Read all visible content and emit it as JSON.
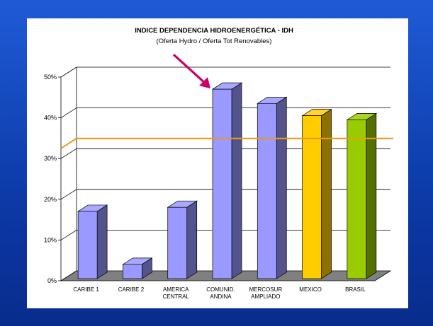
{
  "slide": {
    "background_color": "#1a4fc8"
  },
  "chart_data": {
    "type": "bar",
    "title": "INDICE DEPENDENCIA HIDROENERGÉTICA - IDH",
    "subtitle": "(Oferta Hydro / Oferta Tot Renovables)",
    "categories": [
      "CARIBE 1",
      "CARIBE 2",
      "AMERICA CENTRAL",
      "COMUNID. ANDINA",
      "MERCOSUR AMPLIADO",
      "MEXICO",
      "BRASIL"
    ],
    "category_lines": [
      [
        "CARIBE 1"
      ],
      [
        "CARIBE 2"
      ],
      [
        "AMERICA",
        "CENTRAL"
      ],
      [
        "COMUNID.",
        "ANDINA"
      ],
      [
        "MERCOSUR",
        "AMPLIADO"
      ],
      [
        "MEXICO"
      ],
      [
        "BRASIL"
      ]
    ],
    "values": [
      16.5,
      3.5,
      17.5,
      46.5,
      43,
      40,
      39
    ],
    "unit": "%",
    "ylim": [
      0,
      50
    ],
    "yticks": [
      0,
      10,
      20,
      30,
      40,
      50
    ],
    "ytick_labels": [
      "0%",
      "10%",
      "20%",
      "30%",
      "40%",
      "50%"
    ],
    "reference_line": 32.5,
    "reference_line_color": "#e89a1a",
    "bar_colors": [
      "#9999ff",
      "#9999ff",
      "#9999ff",
      "#9999ff",
      "#9999ff",
      "#ffcc00",
      "#99cc00"
    ],
    "highlight": "arrow pointing to COMUNID. ANDINA",
    "arrow_color": "#cc0066",
    "grid": true,
    "three_d": true
  }
}
